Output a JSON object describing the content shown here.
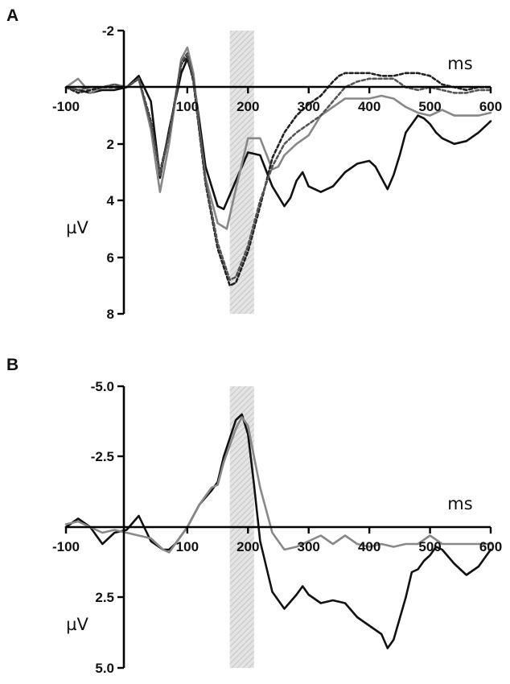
{
  "chart_data": [
    {
      "panel": "A",
      "type": "line",
      "xlabel": "ms",
      "ylabel": "µV",
      "xlim": [
        -100,
        600
      ],
      "ylim": [
        -2,
        8
      ],
      "y_inverted": true,
      "x_ticks": [
        "-100",
        "100",
        "200",
        "300",
        "400",
        "500",
        "600"
      ],
      "y_ticks": [
        "-2",
        "2",
        "4",
        "6",
        "8"
      ],
      "shaded_window": [
        170,
        210
      ],
      "grid": false,
      "series": [
        {
          "color": "#111111",
          "dash": "",
          "x": [
            -100,
            -80,
            -60,
            -40,
            -20,
            0,
            20,
            40,
            55,
            70,
            80,
            90,
            100,
            110,
            120,
            130,
            150,
            160,
            170,
            180,
            200,
            220,
            240,
            260,
            270,
            280,
            290,
            300,
            320,
            340,
            360,
            380,
            400,
            410,
            420,
            430,
            440,
            450,
            460,
            470,
            480,
            490,
            500,
            510,
            520,
            540,
            560,
            580,
            600
          ],
          "y": [
            0,
            0.1,
            0.2,
            0.1,
            0.1,
            0,
            -0.4,
            0.5,
            3.2,
            1.5,
            0.5,
            -0.5,
            -1.0,
            -0.3,
            1.2,
            2.8,
            4.2,
            4.3,
            3.8,
            3.3,
            2.3,
            2.4,
            3.5,
            4.2,
            3.9,
            3.3,
            3.0,
            3.5,
            3.7,
            3.5,
            3.0,
            2.7,
            2.6,
            2.8,
            3.2,
            3.6,
            3.1,
            2.4,
            1.6,
            1.3,
            1.0,
            1.1,
            1.3,
            1.6,
            1.8,
            2.0,
            1.9,
            1.6,
            1.2
          ]
        },
        {
          "color": "#888888",
          "dash": "",
          "x": [
            -100,
            -80,
            -60,
            -40,
            -20,
            0,
            20,
            40,
            55,
            70,
            80,
            90,
            100,
            110,
            120,
            130,
            150,
            165,
            180,
            200,
            220,
            240,
            250,
            260,
            280,
            300,
            320,
            340,
            360,
            380,
            400,
            420,
            440,
            460,
            480,
            500,
            520,
            540,
            560,
            580,
            600
          ],
          "y": [
            0,
            -0.3,
            0.2,
            0,
            -0.1,
            0,
            -0.3,
            1.5,
            3.7,
            2.0,
            0.5,
            -1.0,
            -1.4,
            -0.5,
            1.5,
            3.2,
            4.8,
            5.0,
            3.6,
            1.8,
            1.8,
            2.9,
            2.8,
            2.4,
            2.0,
            1.7,
            1.0,
            0.7,
            0.4,
            0.4,
            0.4,
            0.3,
            0.4,
            0.7,
            0.9,
            1.0,
            0.8,
            1.0,
            1.0,
            1.0,
            0.9
          ]
        },
        {
          "color": "#222222",
          "dash": "4,3",
          "x": [
            -100,
            -80,
            -60,
            -40,
            -20,
            0,
            20,
            40,
            55,
            70,
            80,
            90,
            100,
            110,
            120,
            130,
            150,
            170,
            180,
            200,
            220,
            240,
            260,
            280,
            300,
            320,
            340,
            350,
            360,
            380,
            400,
            420,
            440,
            460,
            480,
            500,
            520,
            540,
            560,
            580,
            600
          ],
          "y": [
            0,
            0.2,
            0.1,
            0,
            0,
            0,
            -0.3,
            1.2,
            3.0,
            1.6,
            0.4,
            -0.8,
            -1.1,
            -0.2,
            1.6,
            3.4,
            5.7,
            7.0,
            6.9,
            5.8,
            4.2,
            2.5,
            1.6,
            1.0,
            0.6,
            0.3,
            -0.2,
            -0.4,
            -0.5,
            -0.5,
            -0.5,
            -0.4,
            -0.4,
            -0.5,
            -0.5,
            -0.4,
            -0.1,
            0,
            0.1,
            0,
            0
          ]
        },
        {
          "color": "#555555",
          "dash": "4,3",
          "x": [
            -100,
            -80,
            -60,
            -40,
            -20,
            0,
            20,
            40,
            55,
            70,
            80,
            90,
            100,
            110,
            120,
            130,
            150,
            170,
            180,
            200,
            220,
            240,
            260,
            280,
            300,
            320,
            340,
            360,
            380,
            400,
            420,
            440,
            460,
            480,
            500,
            520,
            540,
            560,
            580,
            600
          ],
          "y": [
            0,
            0.1,
            0,
            0,
            -0.1,
            0,
            -0.3,
            1.3,
            3.1,
            1.7,
            0.4,
            -0.9,
            -1.2,
            -0.3,
            1.5,
            3.3,
            5.5,
            6.8,
            6.7,
            5.6,
            4.0,
            2.8,
            2.0,
            1.6,
            1.3,
            1.0,
            0.5,
            0,
            -0.2,
            -0.3,
            -0.3,
            -0.3,
            0,
            0.1,
            0,
            0.1,
            0.2,
            0.2,
            0.1,
            0.1
          ]
        }
      ]
    },
    {
      "panel": "B",
      "type": "line",
      "xlabel": "ms",
      "ylabel": "µV",
      "xlim": [
        -100,
        600
      ],
      "ylim": [
        -5,
        5
      ],
      "y_inverted": true,
      "x_ticks": [
        "-100",
        "100",
        "200",
        "300",
        "400",
        "500",
        "600"
      ],
      "y_ticks": [
        "-5.0",
        "-2.5",
        "2.5",
        "5.0"
      ],
      "shaded_window": [
        170,
        210
      ],
      "grid": false,
      "series": [
        {
          "color": "#111111",
          "dash": "",
          "x": [
            -100,
            -80,
            -60,
            -40,
            -20,
            0,
            20,
            40,
            60,
            70,
            80,
            100,
            120,
            140,
            150,
            160,
            180,
            190,
            200,
            210,
            220,
            240,
            260,
            280,
            290,
            300,
            320,
            340,
            360,
            380,
            400,
            420,
            430,
            440,
            460,
            470,
            480,
            490,
            500,
            510,
            520,
            540,
            560,
            580,
            600
          ],
          "y": [
            0,
            -0.3,
            0,
            0.6,
            0.2,
            0.1,
            -0.4,
            0.5,
            0.8,
            0.8,
            0.6,
            0,
            -0.8,
            -1.3,
            -1.6,
            -2.5,
            -3.8,
            -4.0,
            -3.3,
            -1.5,
            0.5,
            2.3,
            2.9,
            2.4,
            2.1,
            2.4,
            2.7,
            2.6,
            2.7,
            3.2,
            3.5,
            3.8,
            4.3,
            4.0,
            2.5,
            1.6,
            1.5,
            1.2,
            1.0,
            0.7,
            0.8,
            1.3,
            1.7,
            1.4,
            0.8
          ]
        },
        {
          "color": "#888888",
          "dash": "",
          "x": [
            -100,
            -80,
            -60,
            -40,
            -20,
            0,
            20,
            40,
            60,
            70,
            80,
            100,
            120,
            140,
            150,
            160,
            180,
            190,
            200,
            210,
            220,
            240,
            260,
            280,
            300,
            320,
            340,
            360,
            380,
            400,
            420,
            440,
            460,
            480,
            500,
            520,
            540,
            560,
            580,
            600
          ],
          "y": [
            -0.1,
            -0.2,
            0,
            0.2,
            0.1,
            0.2,
            0.3,
            0.4,
            0.8,
            0.9,
            0.6,
            0,
            -0.8,
            -1.4,
            -1.5,
            -2.3,
            -3.5,
            -3.9,
            -3.6,
            -2.5,
            -1.4,
            0.2,
            0.8,
            0.7,
            0.5,
            0.3,
            0.6,
            0.3,
            0.6,
            0.7,
            0.6,
            0.7,
            0.6,
            0.6,
            0.3,
            0.6,
            0.6,
            0.6,
            0.6,
            0.6
          ]
        }
      ]
    }
  ]
}
